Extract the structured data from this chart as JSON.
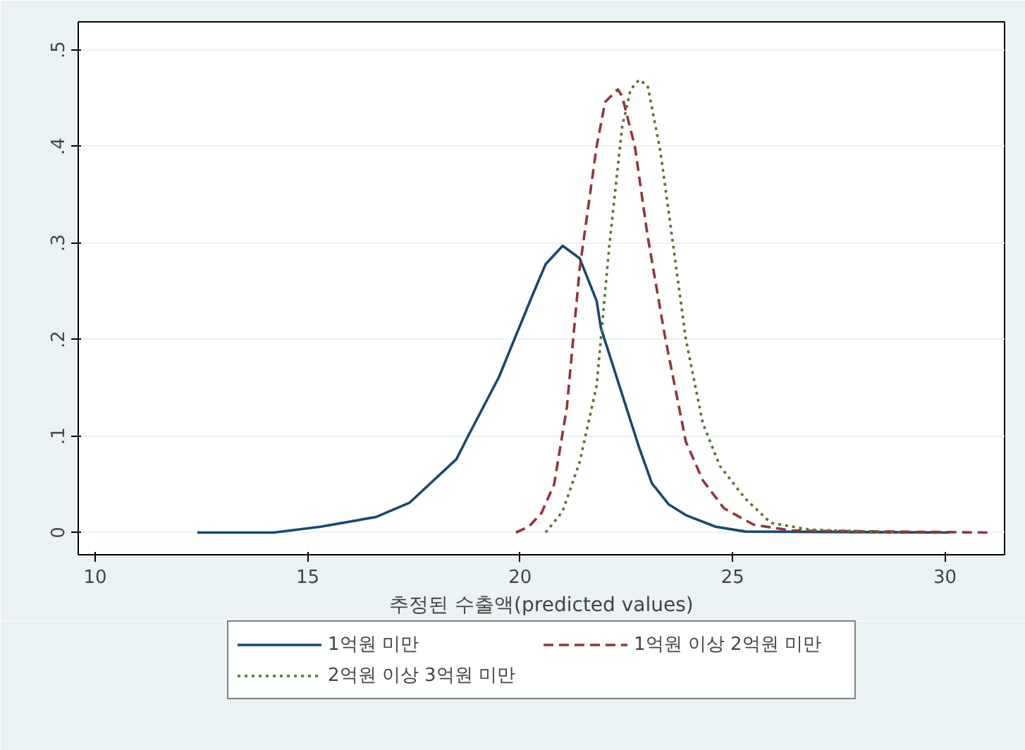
{
  "chart_data": {
    "type": "line",
    "xlabel": "추정된 수출액(predicted values)",
    "xlim": [
      9.6,
      31.4
    ],
    "ylim": [
      -0.023,
      0.529
    ],
    "xticks": [
      10,
      15,
      20,
      25,
      30
    ],
    "yticks": [
      0,
      {
        "value": 0.1,
        "label": ".1"
      },
      {
        "value": 0.2,
        "label": ".2"
      },
      {
        "value": 0.3,
        "label": ".3"
      },
      {
        "value": 0.4,
        "label": ".4"
      },
      {
        "value": 0.5,
        "label": ".5"
      }
    ],
    "grid": "y",
    "legend": "bottom",
    "marker": "none",
    "series": [
      {
        "name": "1억원 미만",
        "color": "#1a476f",
        "line_style": "solid",
        "x": [
          12.4,
          14.2,
          15.3,
          16.6,
          17.4,
          18.5,
          18.8,
          19.5,
          20.3,
          20.6,
          21.0,
          21.4,
          21.8,
          21.9,
          22.8,
          23.1,
          23.5,
          23.9,
          24.6,
          25.3,
          30.1
        ],
        "values": [
          0,
          0,
          0.006,
          0.016,
          0.031,
          0.076,
          0.102,
          0.161,
          0.247,
          0.278,
          0.297,
          0.284,
          0.24,
          0.212,
          0.088,
          0.051,
          0.029,
          0.018,
          0.006,
          0.001,
          0
        ]
      },
      {
        "name": "1억원 이상 2억원 미만",
        "color": "#90353b",
        "line_style": "dashed",
        "x": [
          19.9,
          20.2,
          20.5,
          20.8,
          21.1,
          21.4,
          21.8,
          22.0,
          22.3,
          22.4,
          22.7,
          23.0,
          23.4,
          23.9,
          24.3,
          24.8,
          25.5,
          26.4,
          31.1
        ],
        "values": [
          0,
          0.006,
          0.02,
          0.05,
          0.13,
          0.273,
          0.4,
          0.446,
          0.459,
          0.452,
          0.4,
          0.307,
          0.205,
          0.094,
          0.054,
          0.025,
          0.008,
          0.002,
          0
        ]
      },
      {
        "name": "2억원 이상 3억원 미만",
        "color": "#55752f",
        "line_style": "dotted",
        "x": [
          20.6,
          21.0,
          21.4,
          21.8,
          22.1,
          22.4,
          22.6,
          22.8,
          23.0,
          23.3,
          23.6,
          23.9,
          24.3,
          24.7,
          25.3,
          25.9,
          26.8,
          29.0
        ],
        "values": [
          0,
          0.022,
          0.073,
          0.152,
          0.298,
          0.42,
          0.459,
          0.469,
          0.463,
          0.395,
          0.298,
          0.2,
          0.113,
          0.069,
          0.035,
          0.01,
          0.003,
          0
        ]
      }
    ]
  }
}
